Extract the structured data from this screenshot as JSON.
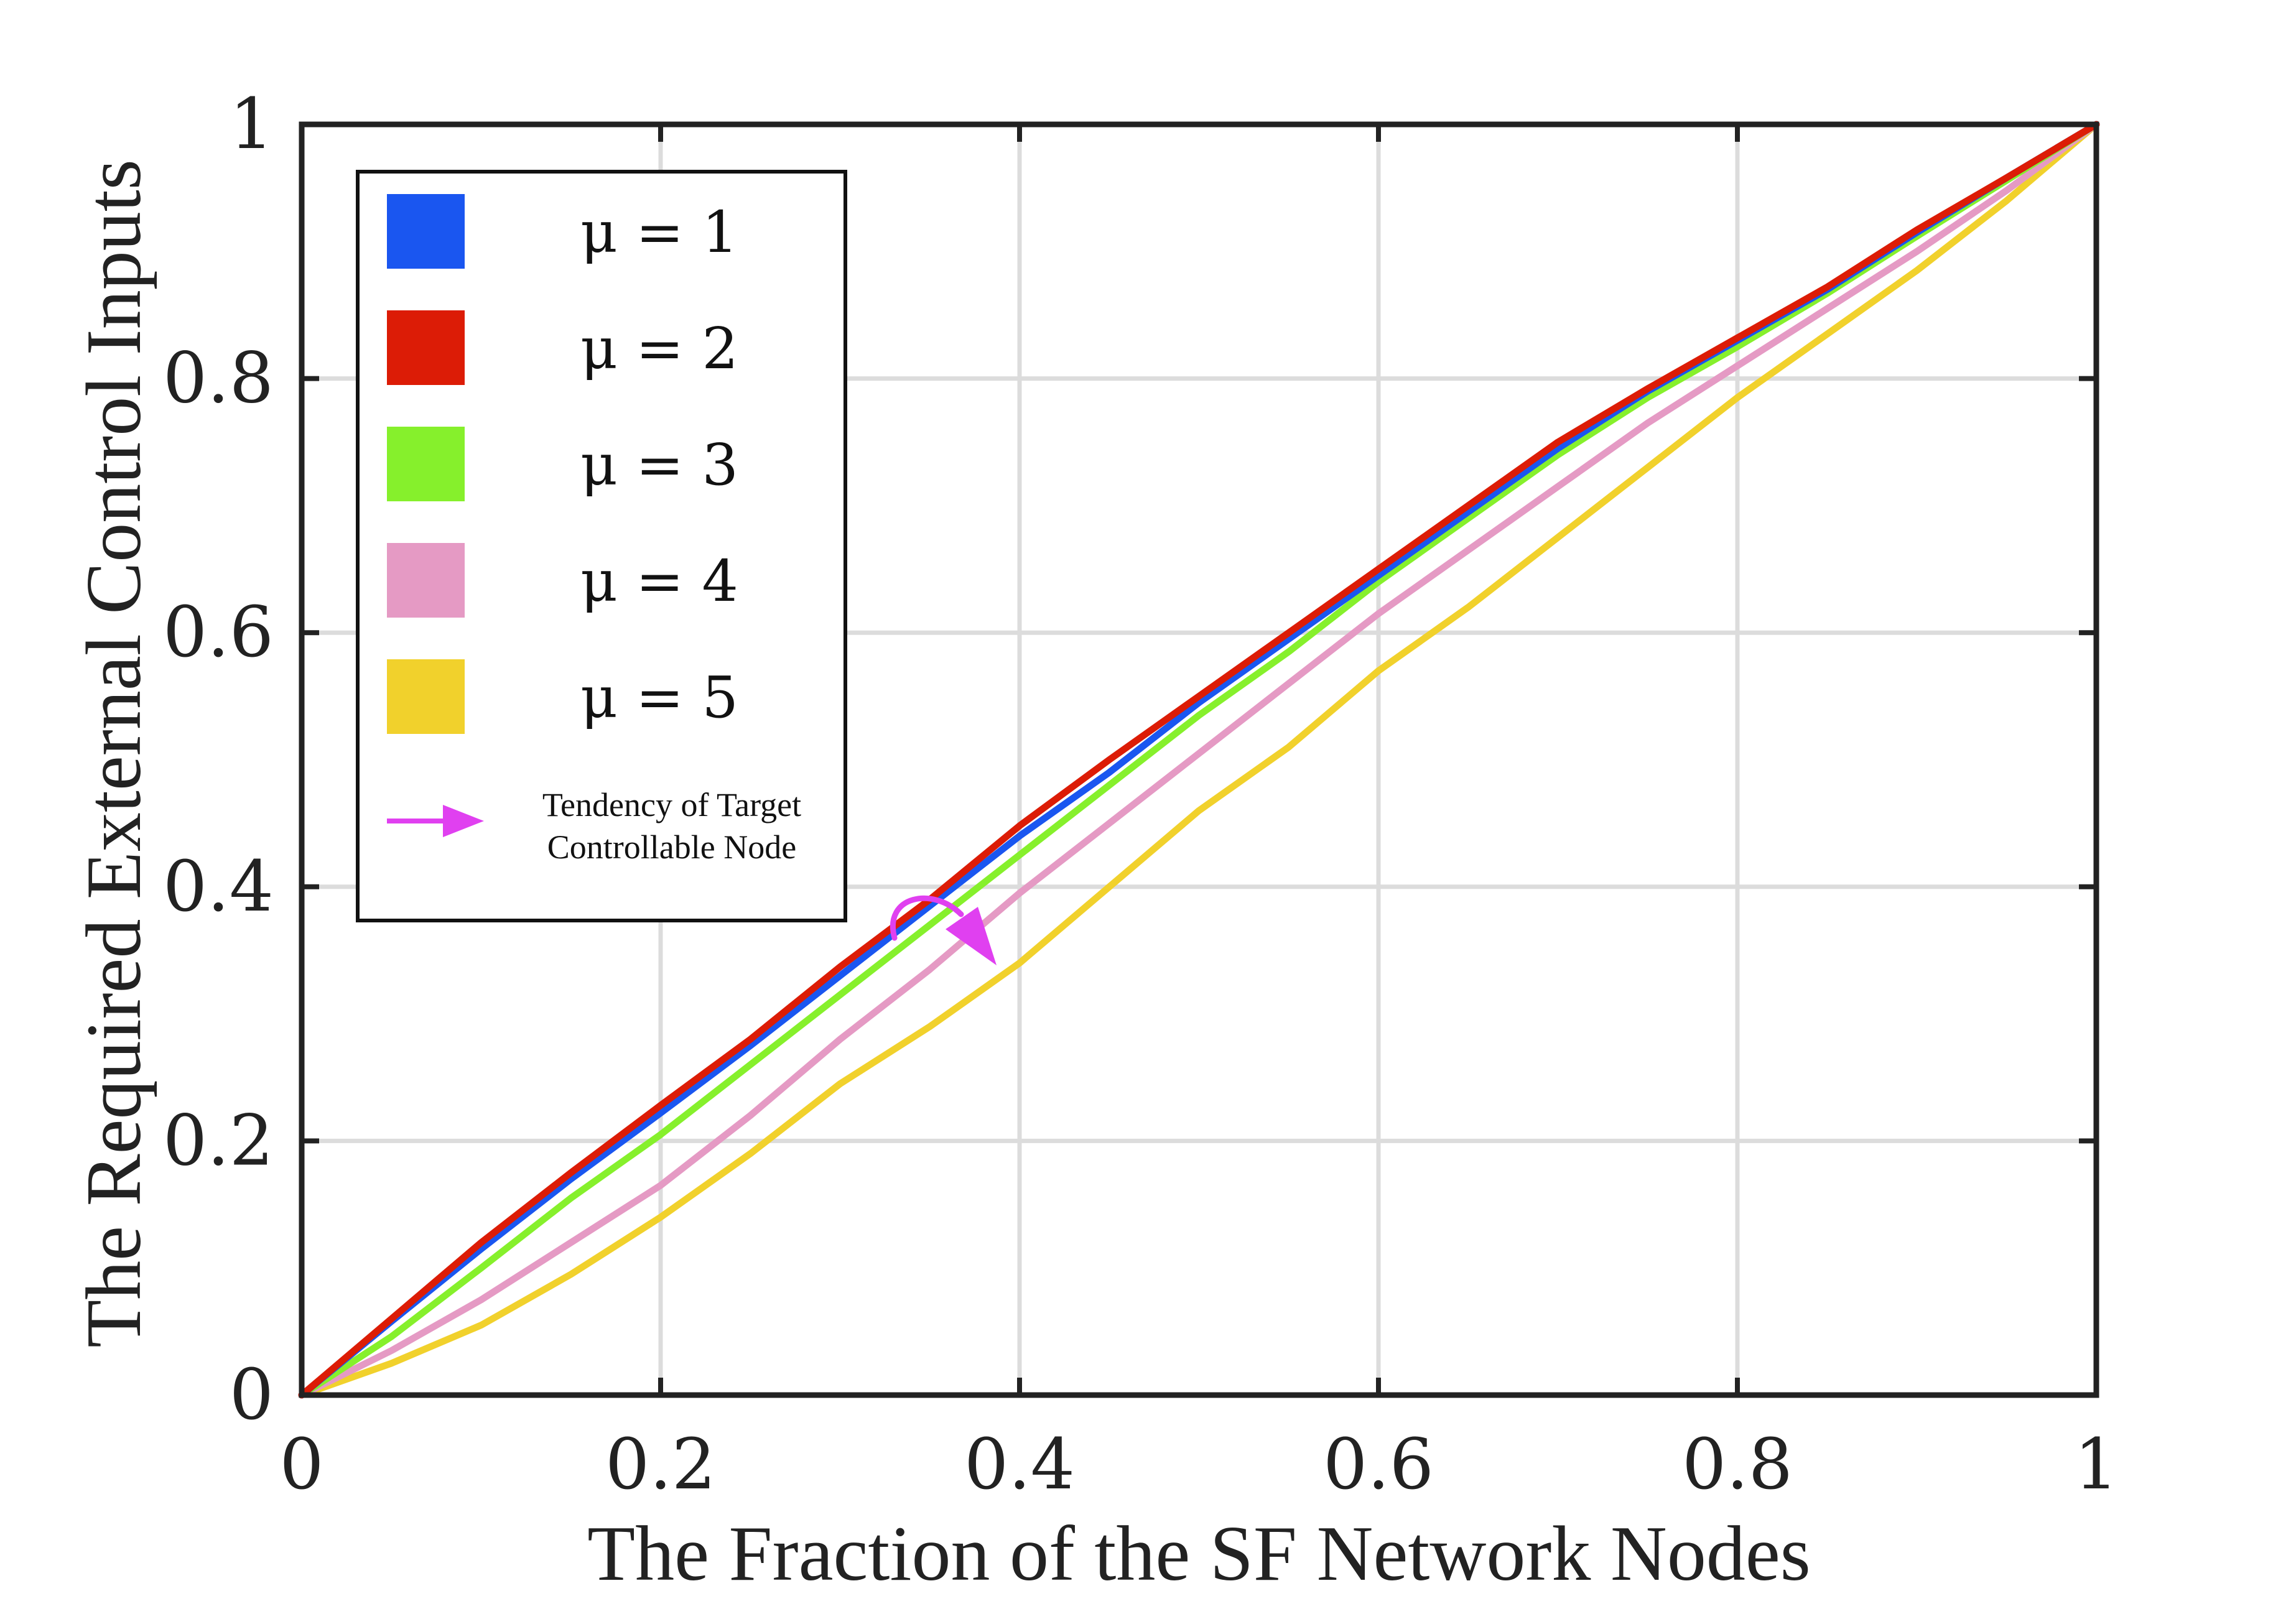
{
  "chart_data": {
    "type": "line",
    "xlabel": "The Fraction of the SF Network Nodes",
    "ylabel": "The Required External Control Inputs",
    "xlim": [
      0,
      1
    ],
    "ylim": [
      0,
      1
    ],
    "xticks": [
      "0",
      "0.2",
      "0.4",
      "0.6",
      "0.8",
      "1"
    ],
    "yticks": [
      "0",
      "0.2",
      "0.4",
      "0.6",
      "0.8",
      "1"
    ],
    "grid": true,
    "legend_position": "top-left",
    "x": [
      0,
      0.05,
      0.1,
      0.15,
      0.2,
      0.25,
      0.3,
      0.35,
      0.4,
      0.45,
      0.5,
      0.55,
      0.6,
      0.65,
      0.7,
      0.75,
      0.8,
      0.85,
      0.9,
      0.95,
      1.0
    ],
    "series": [
      {
        "name": "μ = 1",
        "color": "#1a56f0",
        "values": [
          0,
          0.058,
          0.115,
          0.17,
          0.222,
          0.275,
          0.33,
          0.385,
          0.44,
          0.49,
          0.545,
          0.595,
          0.645,
          0.695,
          0.745,
          0.79,
          0.83,
          0.87,
          0.915,
          0.958,
          1.0
        ]
      },
      {
        "name": "μ = 2",
        "color": "#dc1c06",
        "values": [
          0,
          0.06,
          0.12,
          0.175,
          0.228,
          0.28,
          0.337,
          0.39,
          0.448,
          0.5,
          0.55,
          0.6,
          0.65,
          0.7,
          0.75,
          0.792,
          0.832,
          0.872,
          0.917,
          0.958,
          1.0
        ]
      },
      {
        "name": "μ = 3",
        "color": "#86f02c",
        "values": [
          0,
          0.046,
          0.1,
          0.155,
          0.205,
          0.26,
          0.315,
          0.37,
          0.425,
          0.48,
          0.535,
          0.585,
          0.64,
          0.69,
          0.74,
          0.785,
          0.825,
          0.867,
          0.912,
          0.956,
          1.0
        ]
      },
      {
        "name": "μ = 4",
        "color": "#e59ac4",
        "values": [
          0,
          0.035,
          0.075,
          0.12,
          0.165,
          0.22,
          0.28,
          0.335,
          0.395,
          0.45,
          0.505,
          0.56,
          0.615,
          0.665,
          0.715,
          0.765,
          0.81,
          0.855,
          0.9,
          0.948,
          1.0
        ]
      },
      {
        "name": "μ = 5",
        "color": "#f1d12c",
        "values": [
          0,
          0.025,
          0.055,
          0.095,
          0.14,
          0.19,
          0.245,
          0.29,
          0.34,
          0.4,
          0.46,
          0.51,
          0.57,
          0.62,
          0.675,
          0.73,
          0.785,
          0.835,
          0.885,
          0.94,
          1.0
        ]
      }
    ],
    "annotation": {
      "text_line1": "Tendency of  Target",
      "text_line2": "Controllable Node",
      "color": "#e040f0"
    }
  }
}
